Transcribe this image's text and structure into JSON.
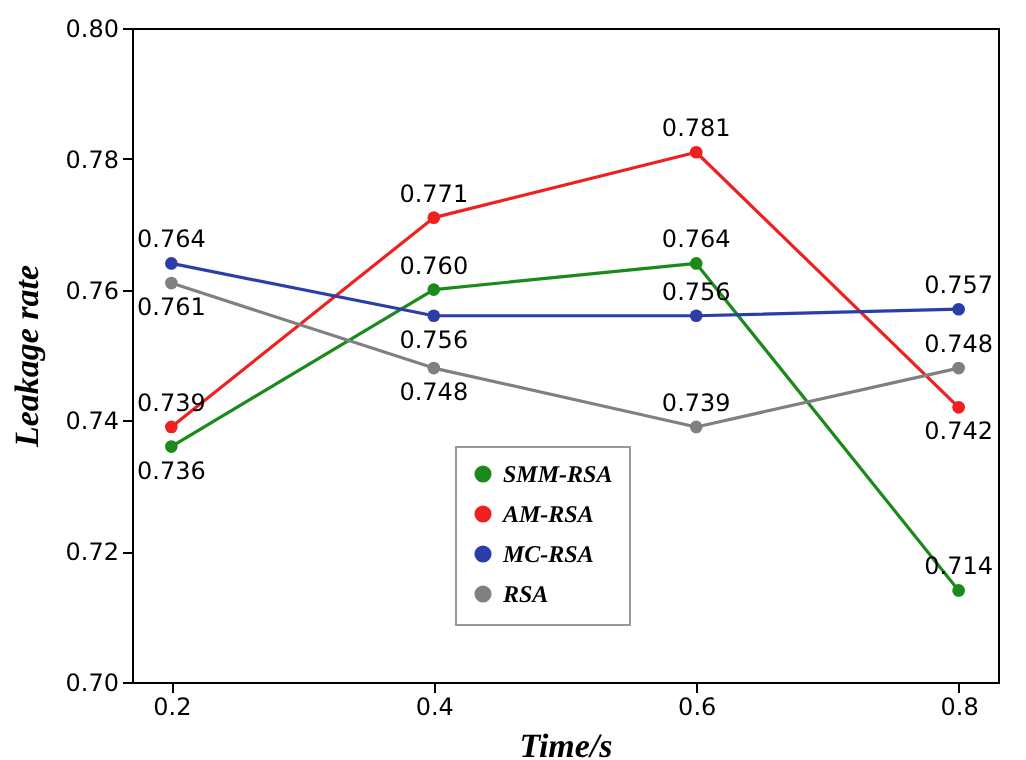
{
  "chart_data": {
    "type": "line",
    "xlabel": "Time/s",
    "ylabel": "Leakage rate",
    "x": [
      0.2,
      0.4,
      0.6,
      0.8
    ],
    "series": [
      {
        "name": "SMM-RSA",
        "color": "#1a8a1a",
        "values": [
          0.736,
          0.76,
          0.764,
          0.714
        ],
        "value_labels": [
          "0.736",
          "0.760",
          "0.764",
          "0.714"
        ]
      },
      {
        "name": "AM-RSA",
        "color": "#ee2020",
        "values": [
          0.739,
          0.771,
          0.781,
          0.742
        ],
        "value_labels": [
          "0.739",
          "0.771",
          "0.781",
          "0.742"
        ]
      },
      {
        "name": "MC-RSA",
        "color": "#2b3ea8",
        "values": [
          0.764,
          0.756,
          0.756,
          0.757
        ],
        "value_labels": [
          "0.764",
          "0.756",
          "0.756",
          "0.757"
        ]
      },
      {
        "name": "RSA",
        "color": "#808080",
        "values": [
          0.761,
          0.748,
          0.739,
          0.748
        ],
        "value_labels": [
          "0.761",
          "0.748",
          "0.739",
          "0.748"
        ]
      }
    ],
    "xlim": [
      0.17,
      0.83
    ],
    "xticks": [
      0.2,
      0.4,
      0.6,
      0.8
    ],
    "ylim": [
      0.7,
      0.8
    ],
    "yticks": [
      {
        "value": 0.7,
        "label": "0.70"
      },
      {
        "value": 0.72,
        "label": "0.72"
      },
      {
        "value": 0.74,
        "label": "0.74"
      },
      {
        "value": 0.76,
        "label": "0.76"
      },
      {
        "value": 0.78,
        "label": "0.78"
      },
      {
        "value": 0.8,
        "label": "0.80"
      }
    ],
    "marker": "circle",
    "line_style": "solid",
    "grid": false,
    "legend": "bottom"
  }
}
